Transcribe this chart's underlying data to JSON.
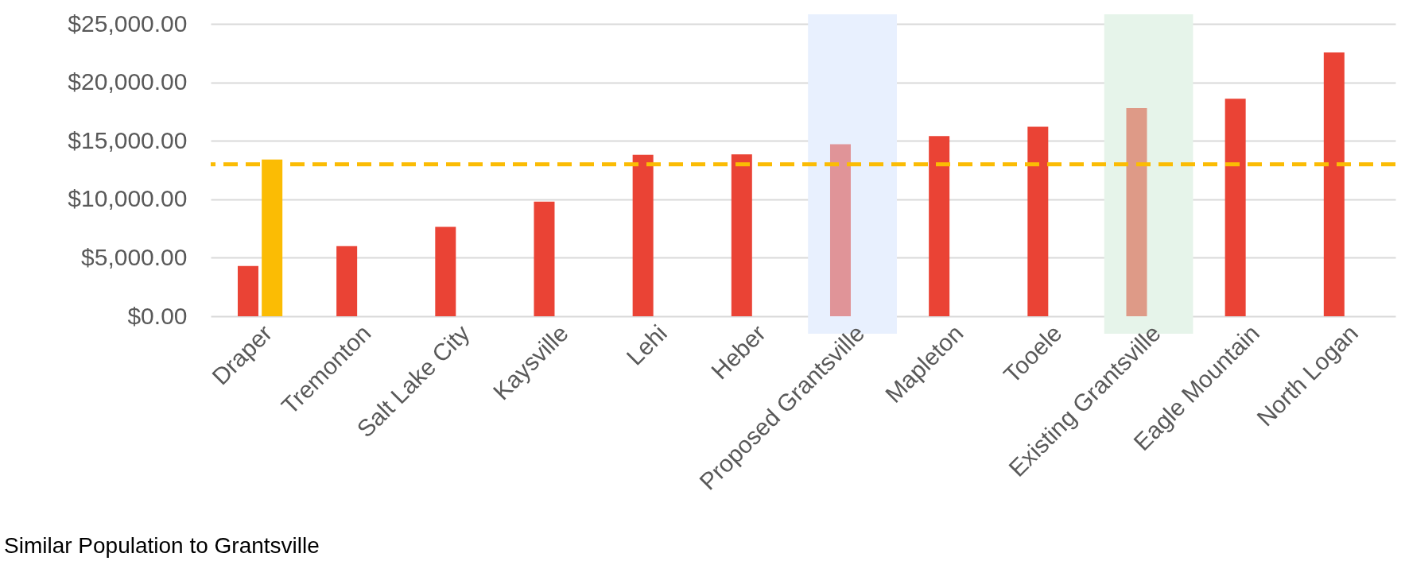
{
  "chart_data": {
    "type": "bar",
    "categories": [
      "Draper",
      "Tremonton",
      "Salt Lake City",
      "Kaysville",
      "Lehi",
      "Heber",
      "Proposed Grantsville",
      "Mapleton",
      "Tooele",
      "Existing Grantsville",
      "Eagle Mountain",
      "North Logan"
    ],
    "series": [
      {
        "colors": [
          "#ea4335",
          "#ea4335",
          "#ea4335",
          "#ea4335",
          "#ea4335",
          "#ea4335",
          "#e09498",
          "#ea4335",
          "#ea4335",
          "#de9a87",
          "#ea4335",
          "#ea4335"
        ],
        "values": [
          4300,
          6000,
          7650,
          9800,
          13800,
          13850,
          14700,
          15400,
          16200,
          17800,
          18600,
          22550
        ]
      },
      {
        "color": "#fbbc04",
        "values": [
          13400,
          null,
          null,
          null,
          null,
          null,
          null,
          null,
          null,
          null,
          null,
          null
        ]
      }
    ],
    "ylim": [
      0,
      25000
    ],
    "yticks": [
      {
        "value": 0,
        "label": "$0.00"
      },
      {
        "value": 5000,
        "label": "$5,000.00"
      },
      {
        "value": 10000,
        "label": "$10,000.00"
      },
      {
        "value": 15000,
        "label": "$15,000.00"
      },
      {
        "value": 20000,
        "label": "$20,000.00"
      },
      {
        "value": 25000,
        "label": "$25,000.00"
      }
    ],
    "grid": "y",
    "ref_lines": [
      {
        "axis": "y",
        "value": 13000,
        "color": "#fbbc04",
        "line_style": "dashed"
      }
    ],
    "bands": [
      {
        "axis": "x",
        "from": "Proposed Grantsville",
        "to": "Proposed Grantsville",
        "color": "#e8f0fe"
      },
      {
        "axis": "x",
        "from": "Existing Grantsville",
        "to": "Existing Grantsville",
        "color": "#e6f4ea"
      }
    ],
    "annotations": [
      "Similar Population to Grantsville"
    ]
  }
}
